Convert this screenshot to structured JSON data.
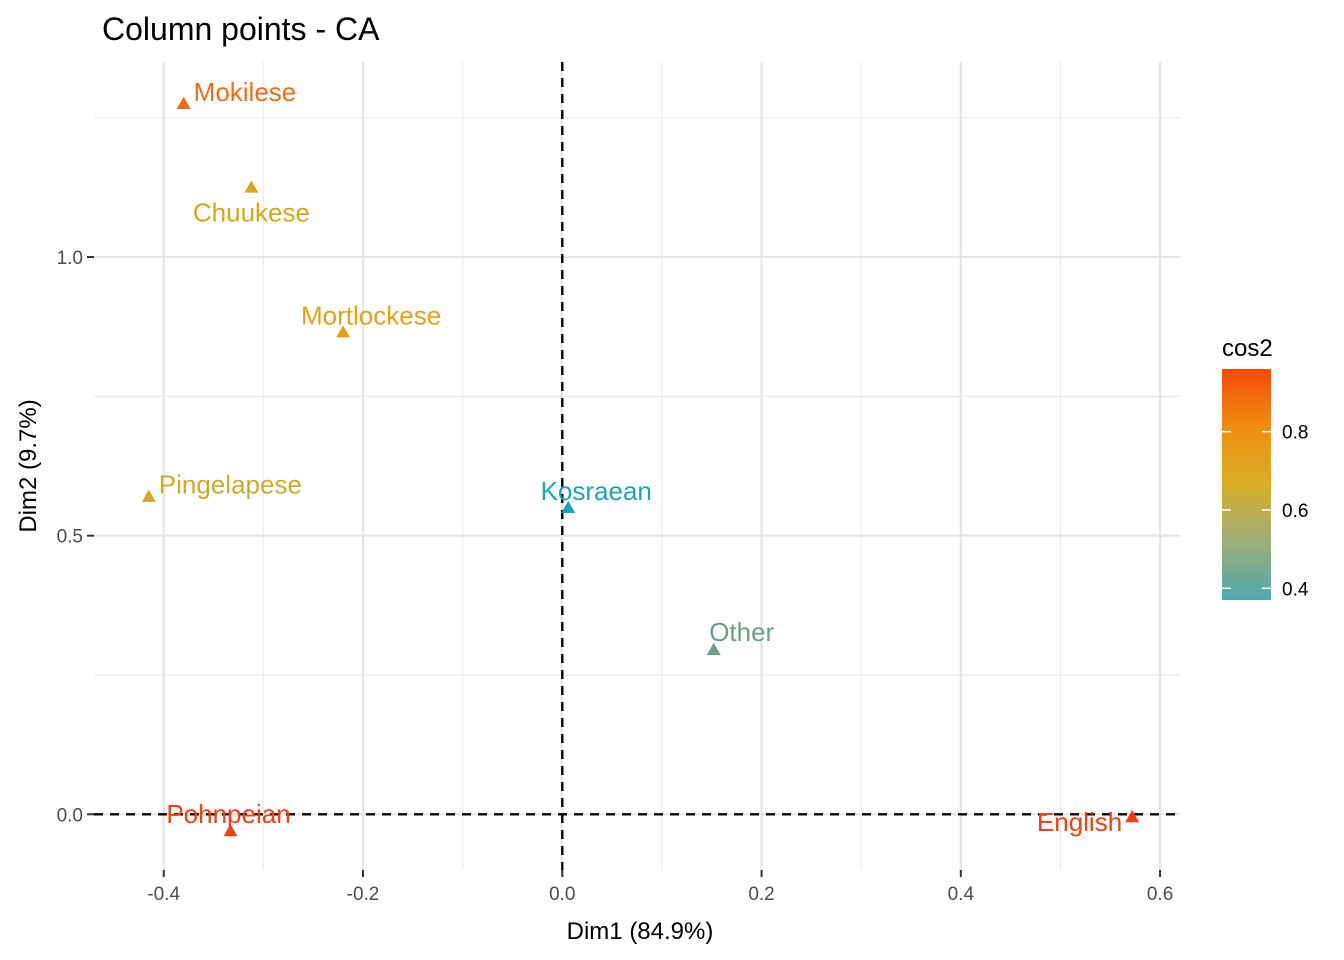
{
  "chart_data": {
    "type": "scatter",
    "title": "Column points - CA",
    "xlabel": "Dim1 (84.9%)",
    "ylabel": "Dim2 (9.7%)",
    "xlim": [
      -0.47,
      0.62
    ],
    "ylim": [
      -0.1,
      1.35
    ],
    "x_ticks": [
      {
        "value": -0.4,
        "label": "-0.4"
      },
      {
        "value": -0.2,
        "label": "-0.2"
      },
      {
        "value": 0.0,
        "label": "0.0"
      },
      {
        "value": 0.2,
        "label": "0.2"
      },
      {
        "value": 0.4,
        "label": "0.4"
      },
      {
        "value": 0.6,
        "label": "0.6"
      }
    ],
    "y_ticks": [
      {
        "value": 0.0,
        "label": "0.0"
      },
      {
        "value": 0.5,
        "label": "0.5"
      },
      {
        "value": 1.0,
        "label": "1.0"
      }
    ],
    "reference_lines": {
      "x": 0,
      "y": 0,
      "style": "dashed"
    },
    "grid": true,
    "marker": "triangle",
    "points": [
      {
        "label": "Mokilese",
        "x": -0.38,
        "y": 1.275,
        "cos2": 0.87,
        "color": "#F26A16",
        "label_anchor": "right"
      },
      {
        "label": "Chuukese",
        "x": -0.312,
        "y": 1.125,
        "cos2": 0.75,
        "color": "#DBA51A",
        "label_anchor": "below"
      },
      {
        "label": "Mortlockese",
        "x": -0.22,
        "y": 0.865,
        "cos2": 0.76,
        "color": "#E6A216",
        "label_anchor": "above"
      },
      {
        "label": "Pingelapese",
        "x": -0.415,
        "y": 0.57,
        "cos2": 0.68,
        "color": "#D2AA2A",
        "label_anchor": "right"
      },
      {
        "label": "Kosraean",
        "x": 0.006,
        "y": 0.55,
        "cos2": 0.38,
        "color": "#1FA3B6",
        "label_anchor": "above"
      },
      {
        "label": "Other",
        "x": 0.152,
        "y": 0.295,
        "cos2": 0.52,
        "color": "#6BA083",
        "label_anchor": "above"
      },
      {
        "label": "Pohnpeian",
        "x": -0.333,
        "y": -0.03,
        "cos2": 0.96,
        "color": "#F2400E",
        "label_anchor": "above"
      },
      {
        "label": "English",
        "x": 0.572,
        "y": -0.005,
        "cos2": 0.96,
        "color": "#F2400E",
        "label_anchor": "left"
      }
    ],
    "legend": {
      "title": "cos2",
      "placement": "right",
      "range": [
        0.37,
        0.96
      ],
      "colors": [
        "#4FA8AD",
        "#9BAE79",
        "#D9AE28",
        "#F08D0E",
        "#F54A0B"
      ],
      "ticks": [
        {
          "value": 0.4,
          "label": "0.4"
        },
        {
          "value": 0.6,
          "label": "0.6"
        },
        {
          "value": 0.8,
          "label": "0.8"
        }
      ]
    }
  }
}
